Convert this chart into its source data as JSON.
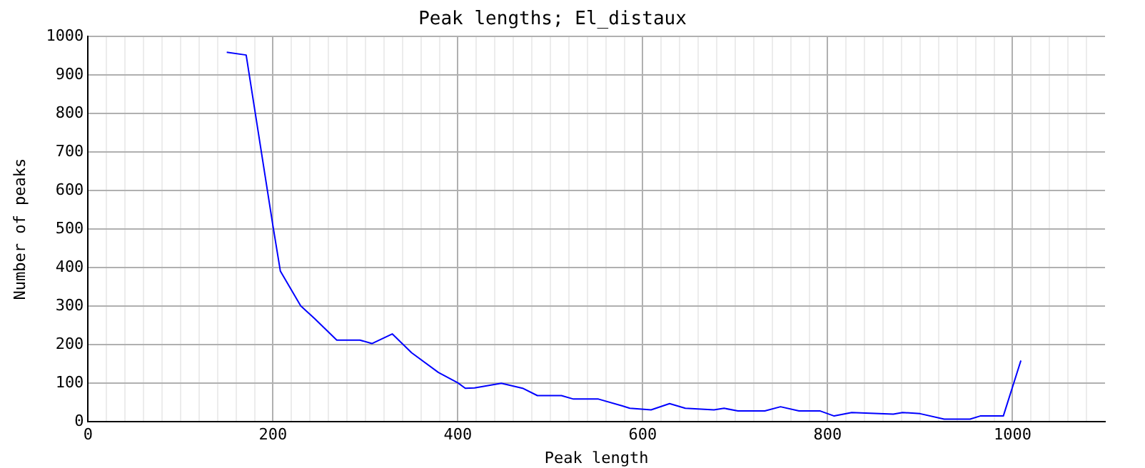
{
  "chart_data": {
    "type": "line",
    "title": "Peak lengths; El_distaux",
    "xlabel": "Peak length",
    "ylabel": "Number of peaks",
    "marker": "none",
    "grid": true,
    "legend": false,
    "xlim": [
      0,
      1100
    ],
    "xticks": [
      0,
      {
        "value": 20,
        "label": null
      },
      {
        "value": 40,
        "label": null
      },
      {
        "value": 60,
        "label": null
      },
      {
        "value": 80,
        "label": null
      },
      {
        "value": 100,
        "label": null
      },
      {
        "value": 120,
        "label": null
      },
      {
        "value": 140,
        "label": null
      },
      {
        "value": 160,
        "label": null
      },
      {
        "value": 180,
        "label": null
      },
      200,
      {
        "value": 220,
        "label": null
      },
      {
        "value": 240,
        "label": null
      },
      {
        "value": 260,
        "label": null
      },
      {
        "value": 280,
        "label": null
      },
      {
        "value": 300,
        "label": null
      },
      {
        "value": 320,
        "label": null
      },
      {
        "value": 340,
        "label": null
      },
      {
        "value": 360,
        "label": null
      },
      {
        "value": 380,
        "label": null
      },
      400,
      {
        "value": 420,
        "label": null
      },
      {
        "value": 440,
        "label": null
      },
      {
        "value": 460,
        "label": null
      },
      {
        "value": 480,
        "label": null
      },
      {
        "value": 500,
        "label": null
      },
      {
        "value": 520,
        "label": null
      },
      {
        "value": 540,
        "label": null
      },
      {
        "value": 560,
        "label": null
      },
      {
        "value": 580,
        "label": null
      },
      600,
      {
        "value": 620,
        "label": null
      },
      {
        "value": 640,
        "label": null
      },
      {
        "value": 660,
        "label": null
      },
      {
        "value": 680,
        "label": null
      },
      {
        "value": 700,
        "label": null
      },
      {
        "value": 720,
        "label": null
      },
      {
        "value": 740,
        "label": null
      },
      {
        "value": 760,
        "label": null
      },
      {
        "value": 780,
        "label": null
      },
      800,
      {
        "value": 820,
        "label": null
      },
      {
        "value": 840,
        "label": null
      },
      {
        "value": 860,
        "label": null
      },
      {
        "value": 880,
        "label": null
      },
      {
        "value": 900,
        "label": null
      },
      {
        "value": 920,
        "label": null
      },
      {
        "value": 940,
        "label": null
      },
      {
        "value": 960,
        "label": null
      },
      {
        "value": 980,
        "label": null
      },
      1000,
      {
        "value": 1020,
        "label": null
      },
      {
        "value": 1040,
        "label": null
      },
      {
        "value": 1060,
        "label": null
      },
      {
        "value": 1080,
        "label": null
      }
    ],
    "ylim": [
      0,
      1000
    ],
    "yticks": [
      0,
      100,
      200,
      300,
      400,
      500,
      600,
      700,
      800,
      900,
      1000
    ],
    "series": [
      {
        "color": "#0000ff",
        "x": [
          150,
          171,
          200,
          208,
          230,
          245,
          269,
          294,
          307,
          329,
          350,
          379,
          400,
          408,
          418,
          447,
          470,
          486,
          512,
          525,
          552,
          578,
          586,
          609,
          629,
          646,
          677,
          688,
          703,
          732,
          749,
          769,
          792,
          807,
          826,
          871,
          881,
          900,
          926,
          954,
          965,
          990,
          1009
        ],
        "values": [
          959,
          952,
          508,
          391,
          301,
          268,
          212,
          212,
          203,
          228,
          179,
          128,
          101,
          87,
          88,
          100,
          87,
          68,
          68,
          59,
          59,
          41,
          35,
          31,
          47,
          35,
          31,
          35,
          28,
          28,
          39,
          28,
          28,
          15,
          24,
          20,
          24,
          21,
          7,
          7,
          15,
          15,
          159
        ]
      }
    ]
  }
}
